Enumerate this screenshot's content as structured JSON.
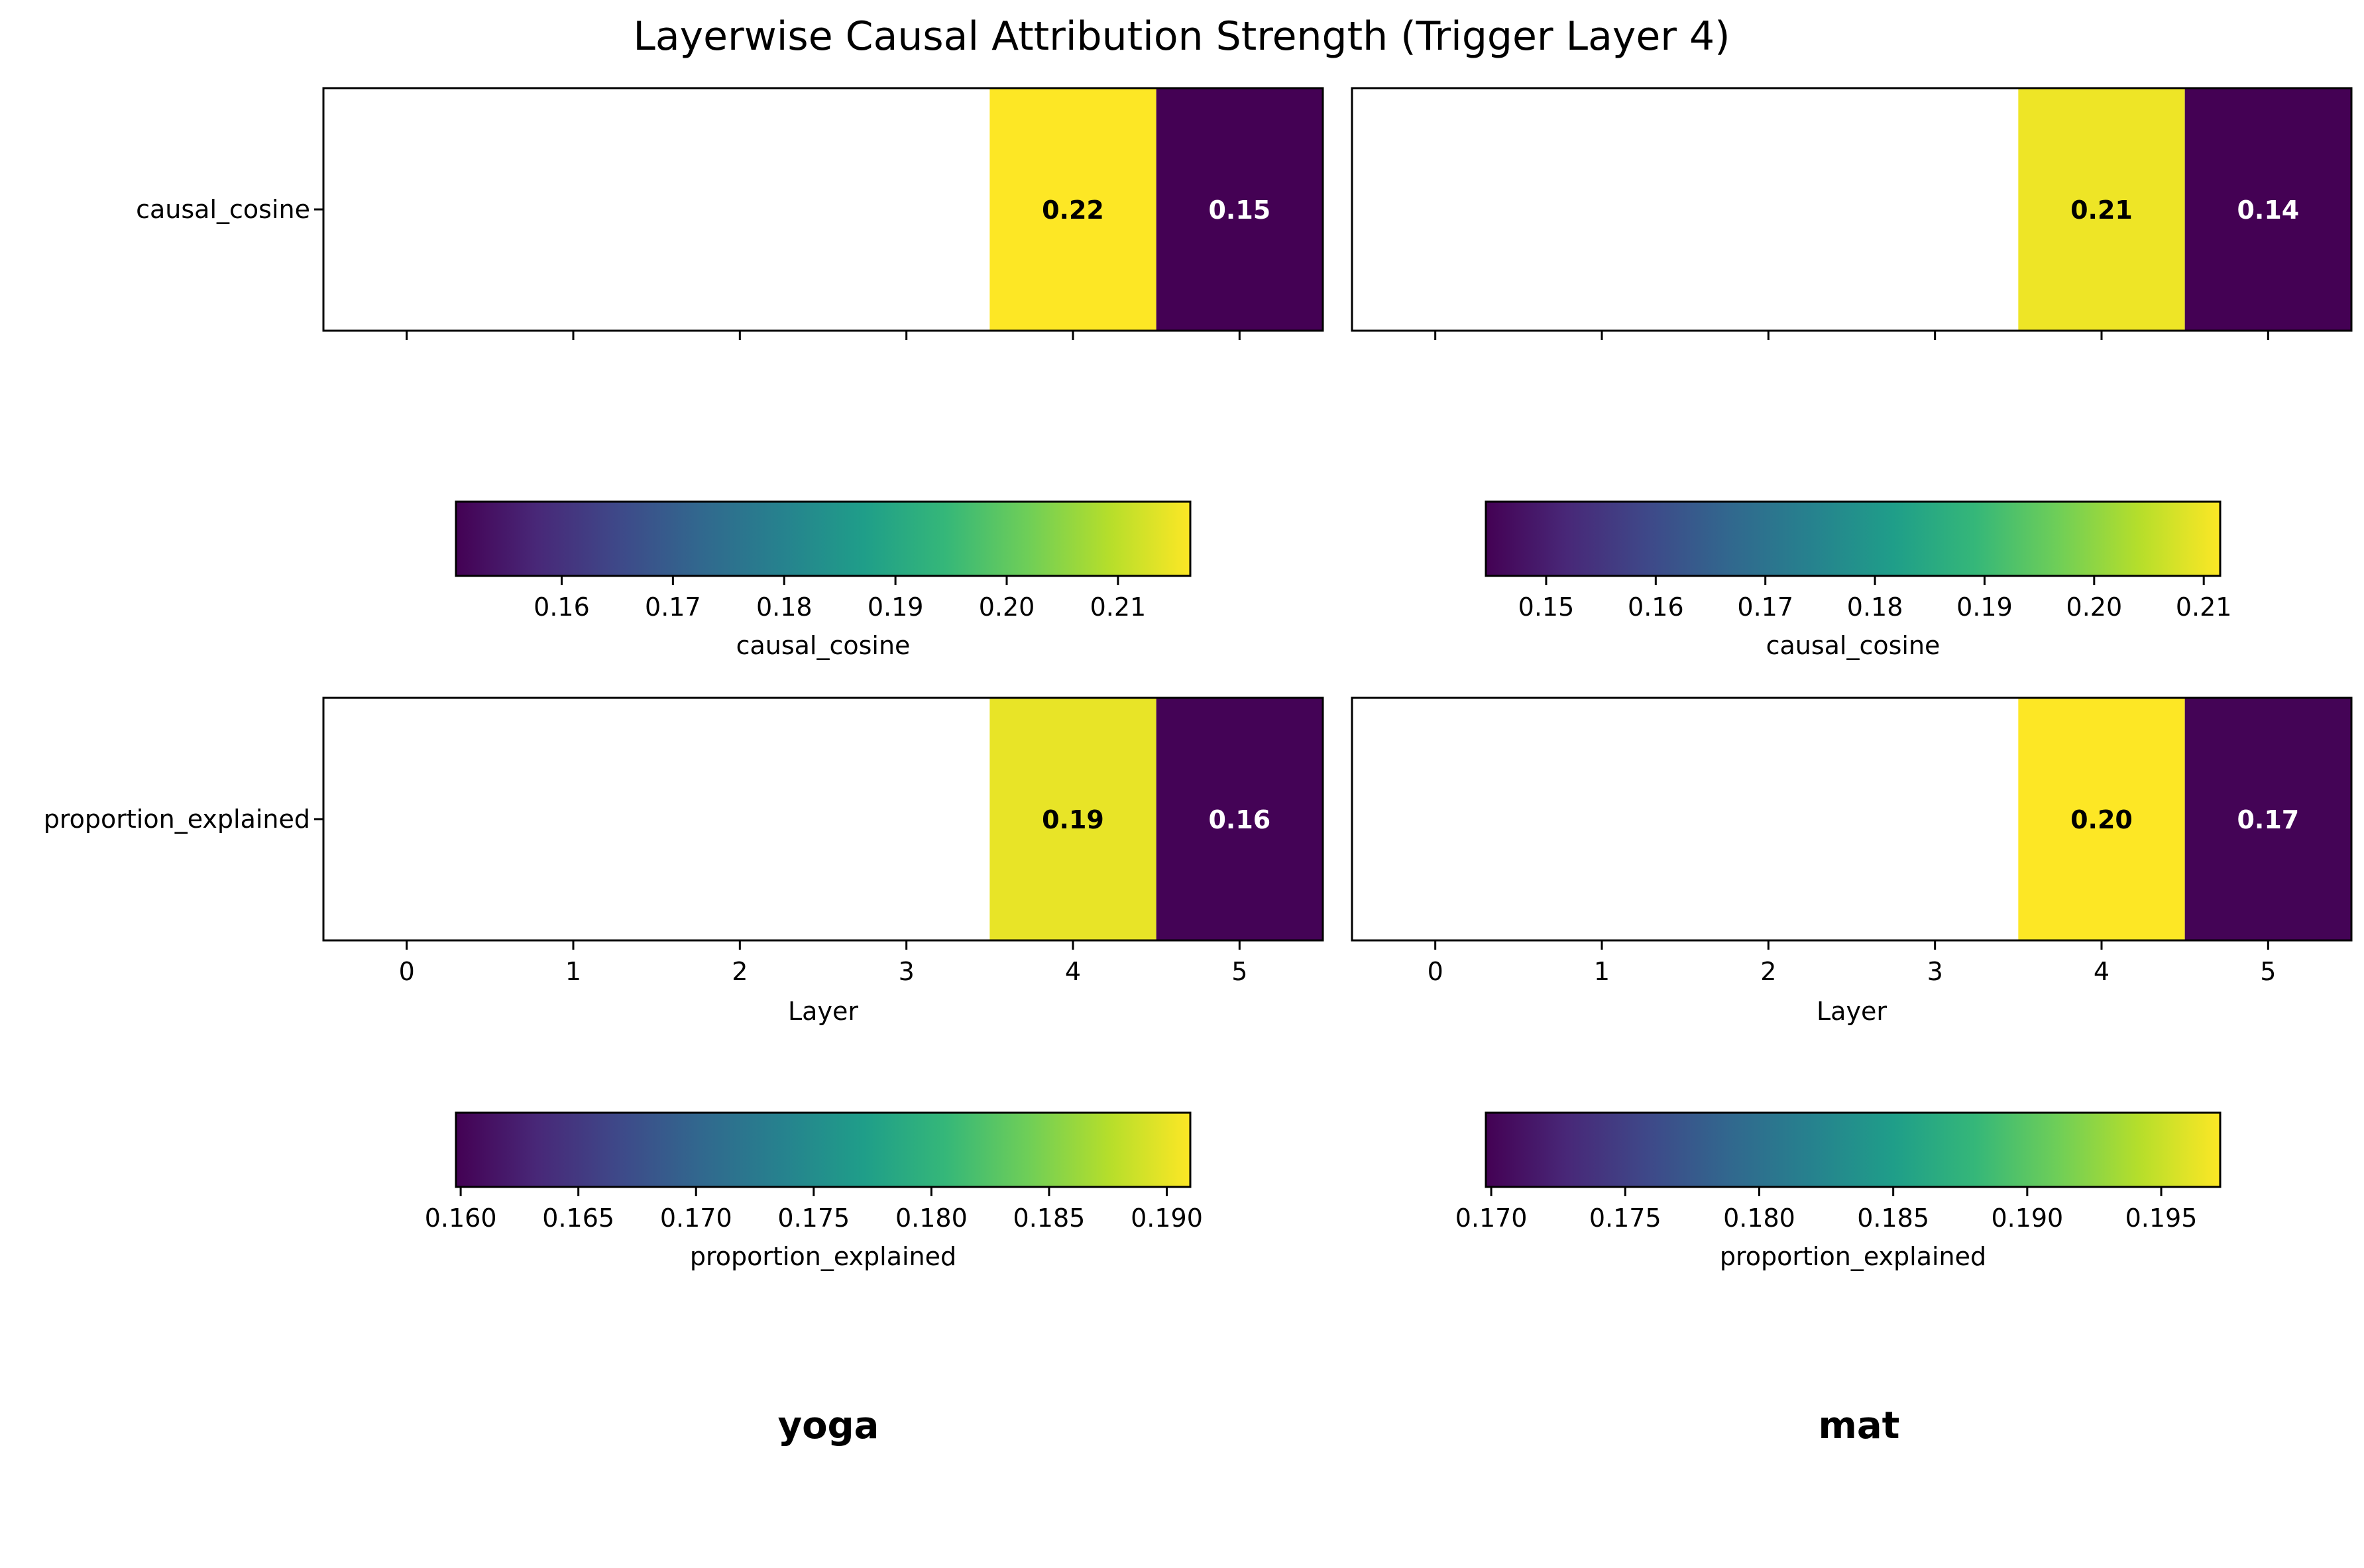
{
  "figure": {
    "title": "Layerwise Causal Attribution Strength (Trigger Layer 4)"
  },
  "colormap": {
    "name": "viridis",
    "low": "#440154",
    "high": "#fde725",
    "stops": [
      "#440154",
      "#482878",
      "#3e4989",
      "#31688e",
      "#26828e",
      "#1f9e89",
      "#35b779",
      "#6ece58",
      "#b5de2b",
      "#fde725"
    ]
  },
  "chart_data": [
    {
      "type": "heatmap",
      "column": "yoga",
      "row": "causal_cosine",
      "ylabel": "causal_cosine",
      "xlabel": "",
      "x": [
        0,
        1,
        2,
        3,
        4,
        5
      ],
      "xticklabels": [],
      "values": [
        null,
        null,
        null,
        null,
        0.22,
        0.15
      ],
      "cell_labels": [
        "",
        "",
        "",
        "",
        "0.22",
        "0.15"
      ],
      "colorbar": {
        "label": "causal_cosine",
        "range": [
          0.1505,
          0.2165
        ],
        "ticks": [
          0.16,
          0.17,
          0.18,
          0.19,
          0.2,
          0.21
        ],
        "tick_labels": [
          "0.16",
          "0.17",
          "0.18",
          "0.19",
          "0.20",
          "0.21"
        ]
      }
    },
    {
      "type": "heatmap",
      "column": "mat",
      "row": "causal_cosine",
      "ylabel": "",
      "xlabel": "",
      "x": [
        0,
        1,
        2,
        3,
        4,
        5
      ],
      "xticklabels": [],
      "values": [
        null,
        null,
        null,
        null,
        0.21,
        0.14
      ],
      "cell_labels": [
        "",
        "",
        "",
        "",
        "0.21",
        "0.14"
      ],
      "colorbar": {
        "label": "causal_cosine",
        "range": [
          0.1445,
          0.2115
        ],
        "ticks": [
          0.15,
          0.16,
          0.17,
          0.18,
          0.19,
          0.2,
          0.21
        ],
        "tick_labels": [
          "0.15",
          "0.16",
          "0.17",
          "0.18",
          "0.19",
          "0.20",
          "0.21"
        ]
      }
    },
    {
      "type": "heatmap",
      "column": "yoga",
      "row": "proportion_explained",
      "ylabel": "proportion_explained",
      "xlabel": "Layer",
      "x": [
        0,
        1,
        2,
        3,
        4,
        5
      ],
      "xticklabels": [
        "0",
        "1",
        "2",
        "3",
        "4",
        "5"
      ],
      "values": [
        null,
        null,
        null,
        null,
        0.19,
        0.16
      ],
      "cell_labels": [
        "",
        "",
        "",
        "",
        "0.19",
        "0.16"
      ],
      "colorbar": {
        "label": "proportion_explained",
        "range": [
          0.1598,
          0.191
        ],
        "ticks": [
          0.16,
          0.165,
          0.17,
          0.175,
          0.18,
          0.185,
          0.19
        ],
        "tick_labels": [
          "0.160",
          "0.165",
          "0.170",
          "0.175",
          "0.180",
          "0.185",
          "0.190"
        ]
      }
    },
    {
      "type": "heatmap",
      "column": "mat",
      "row": "proportion_explained",
      "ylabel": "",
      "xlabel": "Layer",
      "x": [
        0,
        1,
        2,
        3,
        4,
        5
      ],
      "xticklabels": [
        "0",
        "1",
        "2",
        "3",
        "4",
        "5"
      ],
      "values": [
        null,
        null,
        null,
        null,
        0.2,
        0.17
      ],
      "cell_labels": [
        "",
        "",
        "",
        "",
        "0.20",
        "0.17"
      ],
      "colorbar": {
        "label": "proportion_explained",
        "range": [
          0.1698,
          0.1972
        ],
        "ticks": [
          0.17,
          0.175,
          0.18,
          0.185,
          0.19,
          0.195
        ],
        "tick_labels": [
          "0.170",
          "0.175",
          "0.180",
          "0.185",
          "0.190",
          "0.195"
        ]
      }
    }
  ],
  "column_titles": [
    "yoga",
    "mat"
  ]
}
